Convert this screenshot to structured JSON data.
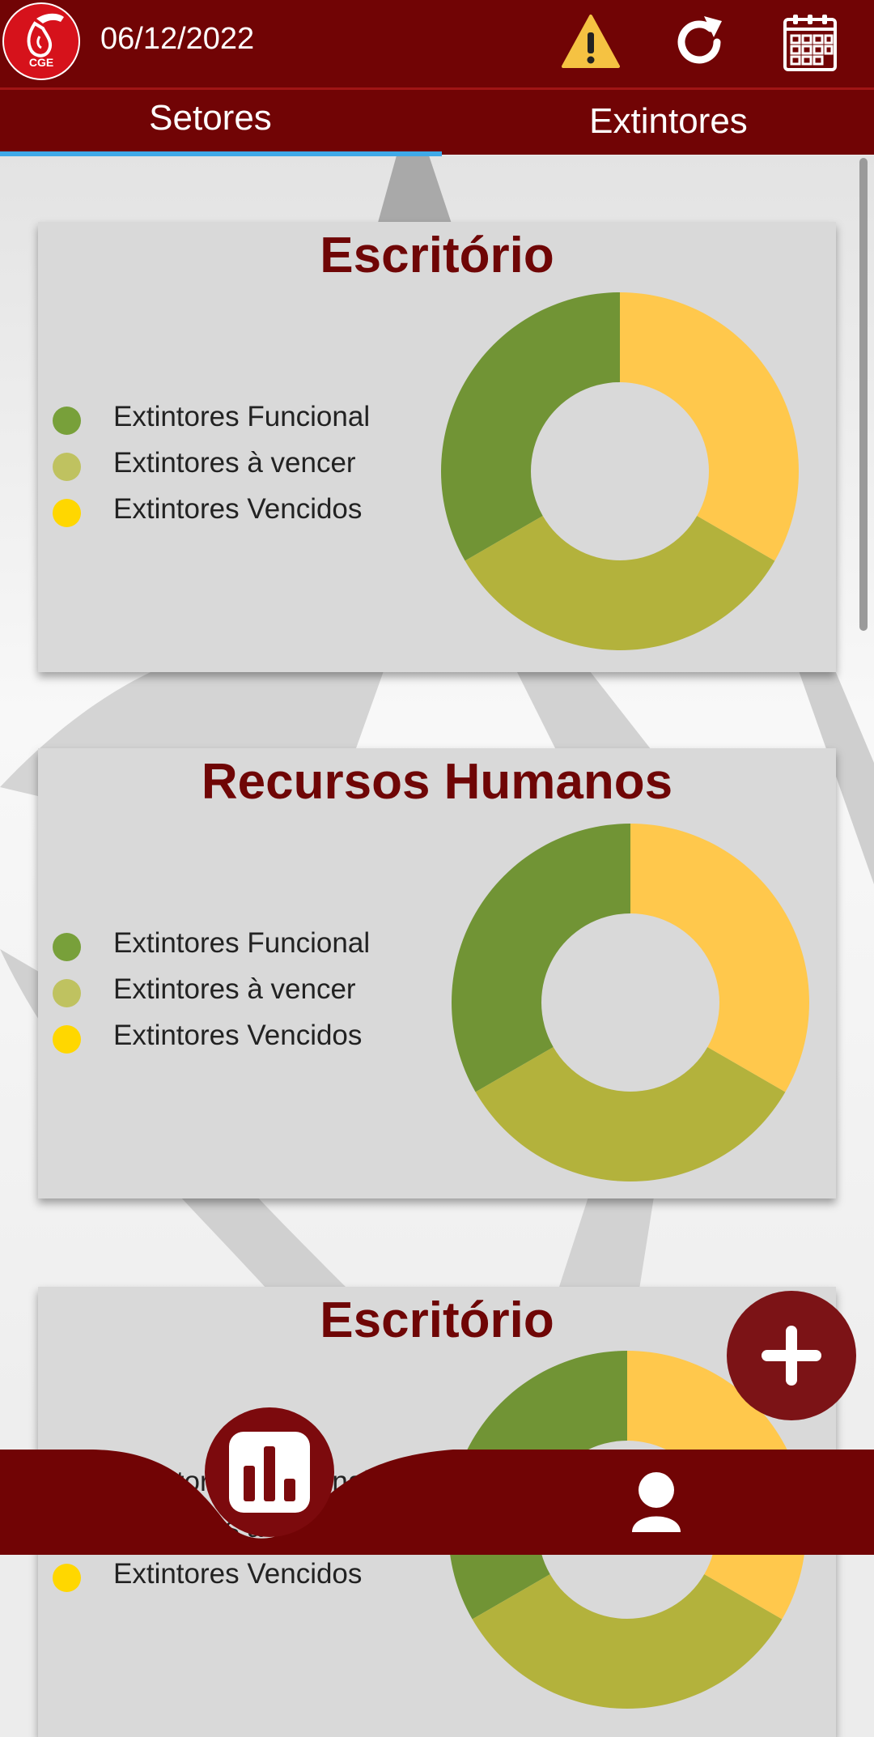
{
  "header": {
    "date": "06/12/2022",
    "logo_text": "CGE"
  },
  "tabs": [
    {
      "label": "Setores",
      "active": true
    },
    {
      "label": "Extintores",
      "active": false
    }
  ],
  "legend_labels": [
    "Extintores Funcional",
    "Extintores à vencer",
    "Extintores Vencidos"
  ],
  "colors": {
    "brand": "#710405",
    "functional": "#719435",
    "to_expire": "#b3b23c",
    "expired": "#ffc84c",
    "legend_dots": [
      "#78a03a",
      "#bfc260",
      "#ffd700"
    ]
  },
  "sectors": [
    {
      "title": "Escritório"
    },
    {
      "title": "Recursos Humanos"
    },
    {
      "title": "Escritório"
    }
  ],
  "chart_data": [
    {
      "type": "pie",
      "title": "Escritório",
      "categories": [
        "Extintores Funcional",
        "Extintores à vencer",
        "Extintores Vencidos"
      ],
      "values": [
        1,
        1,
        1
      ]
    },
    {
      "type": "pie",
      "title": "Recursos Humanos",
      "categories": [
        "Extintores Funcional",
        "Extintores à vencer",
        "Extintores Vencidos"
      ],
      "values": [
        1,
        1,
        1
      ]
    },
    {
      "type": "pie",
      "title": "Escritório",
      "categories": [
        "Extintores Funcional",
        "Extintores à vencer",
        "Extintores Vencidos"
      ],
      "values": [
        1,
        1,
        1
      ]
    }
  ]
}
